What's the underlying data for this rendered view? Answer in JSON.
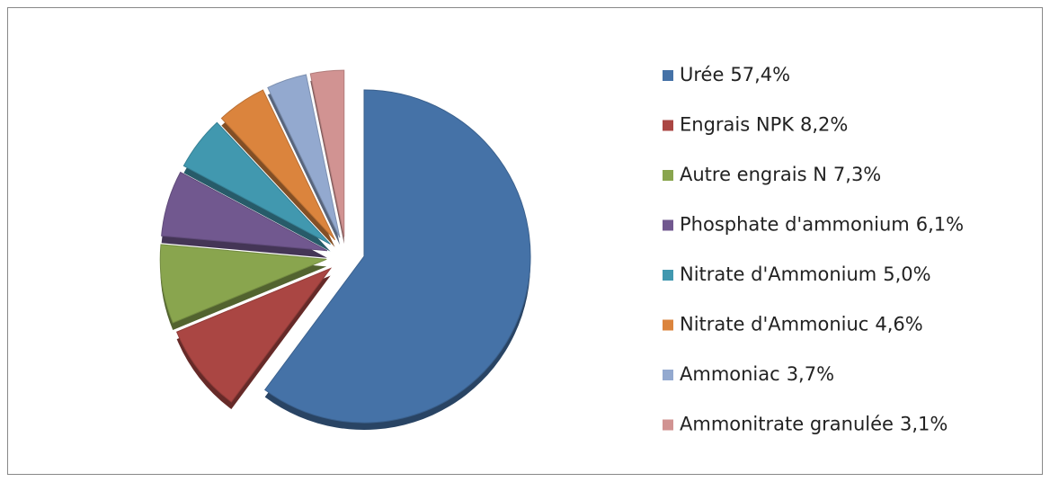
{
  "chart_data": {
    "type": "pie",
    "categories": [
      "Urée",
      "Engrais NPK",
      "Autre engrais N",
      "Phosphate d'ammonium",
      "Nitrate d'Ammonium",
      "Nitrate d'Ammoniuc",
      "Ammoniac",
      "Ammonitrate granulée"
    ],
    "values": [
      57.4,
      8.2,
      7.3,
      6.1,
      5.0,
      4.6,
      3.7,
      3.1
    ],
    "value_labels": [
      "57,4%",
      "8,2%",
      "7,3%",
      "6,1%",
      "5,0%",
      "4,6%",
      "3,7%",
      "3,1%"
    ],
    "colors": [
      "#4572a7",
      "#aa4643",
      "#89a54e",
      "#71588f",
      "#4198af",
      "#db843d",
      "#93a9cf",
      "#d19392"
    ],
    "legend": "right"
  }
}
